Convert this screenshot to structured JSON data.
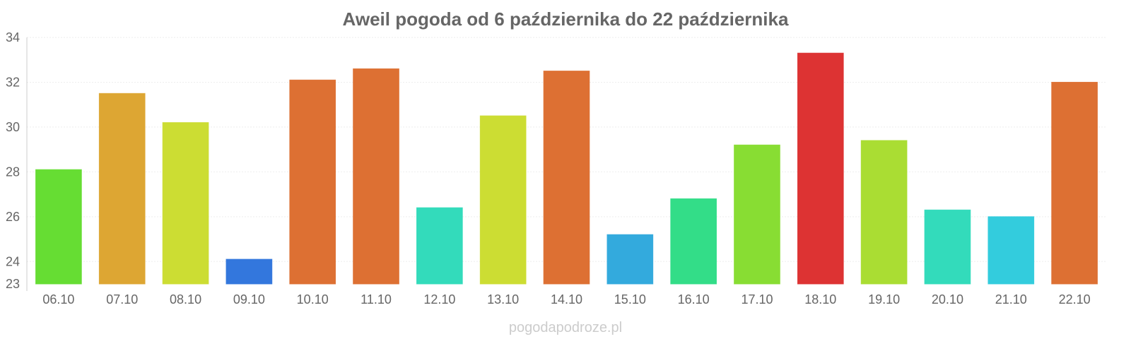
{
  "chart_data": {
    "type": "bar",
    "title": "Aweil pogoda od 6 października do 22 października",
    "categories": [
      "06.10",
      "07.10",
      "08.10",
      "09.10",
      "10.10",
      "11.10",
      "12.10",
      "13.10",
      "14.10",
      "15.10",
      "16.10",
      "17.10",
      "18.10",
      "19.10",
      "20.10",
      "21.10",
      "22.10"
    ],
    "values": [
      28.1,
      31.5,
      30.2,
      24.1,
      32.1,
      32.6,
      26.4,
      30.5,
      32.5,
      25.2,
      26.8,
      29.2,
      33.3,
      29.4,
      26.3,
      26.0,
      32.0
    ],
    "colors": [
      "#66dd33",
      "#dda633",
      "#ccdd33",
      "#3377dd",
      "#dd7033",
      "#dd7033",
      "#33dbbb",
      "#ccdd33",
      "#dd7033",
      "#33aadd",
      "#33dd88",
      "#88dd33",
      "#dd3333",
      "#aadd33",
      "#33dbbb",
      "#33ccdd",
      "#dd7033"
    ],
    "yticks": [
      23,
      24,
      26,
      28,
      30,
      32,
      34
    ],
    "ylim": [
      23,
      34
    ],
    "xlabel": "",
    "ylabel": "",
    "grid": true
  },
  "watermark": "pogodapodroze.pl"
}
